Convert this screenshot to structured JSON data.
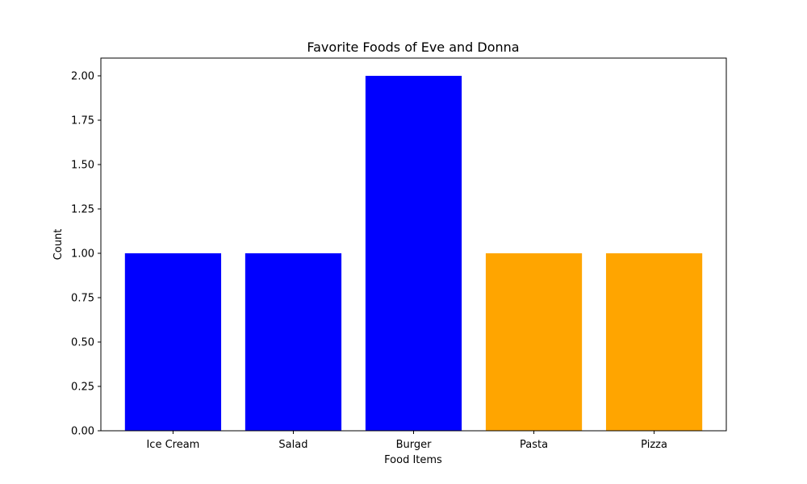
{
  "chart_data": {
    "type": "bar",
    "title": "Favorite Foods of Eve and Donna",
    "xlabel": "Food Items",
    "ylabel": "Count",
    "categories": [
      "Ice Cream",
      "Salad",
      "Burger",
      "Pasta",
      "Pizza"
    ],
    "values": [
      1,
      1,
      2,
      1,
      1
    ],
    "bar_colors": [
      "#0000ff",
      "#0000ff",
      "#0000ff",
      "#ffa500",
      "#ffa500"
    ],
    "ylim": [
      0,
      2.1
    ],
    "yticks": [
      0.0,
      0.25,
      0.5,
      0.75,
      1.0,
      1.25,
      1.5,
      1.75,
      2.0
    ],
    "ytick_labels": [
      "0.00",
      "0.25",
      "0.50",
      "0.75",
      "1.00",
      "1.25",
      "1.50",
      "1.75",
      "2.00"
    ],
    "grid": false,
    "legend": false
  }
}
